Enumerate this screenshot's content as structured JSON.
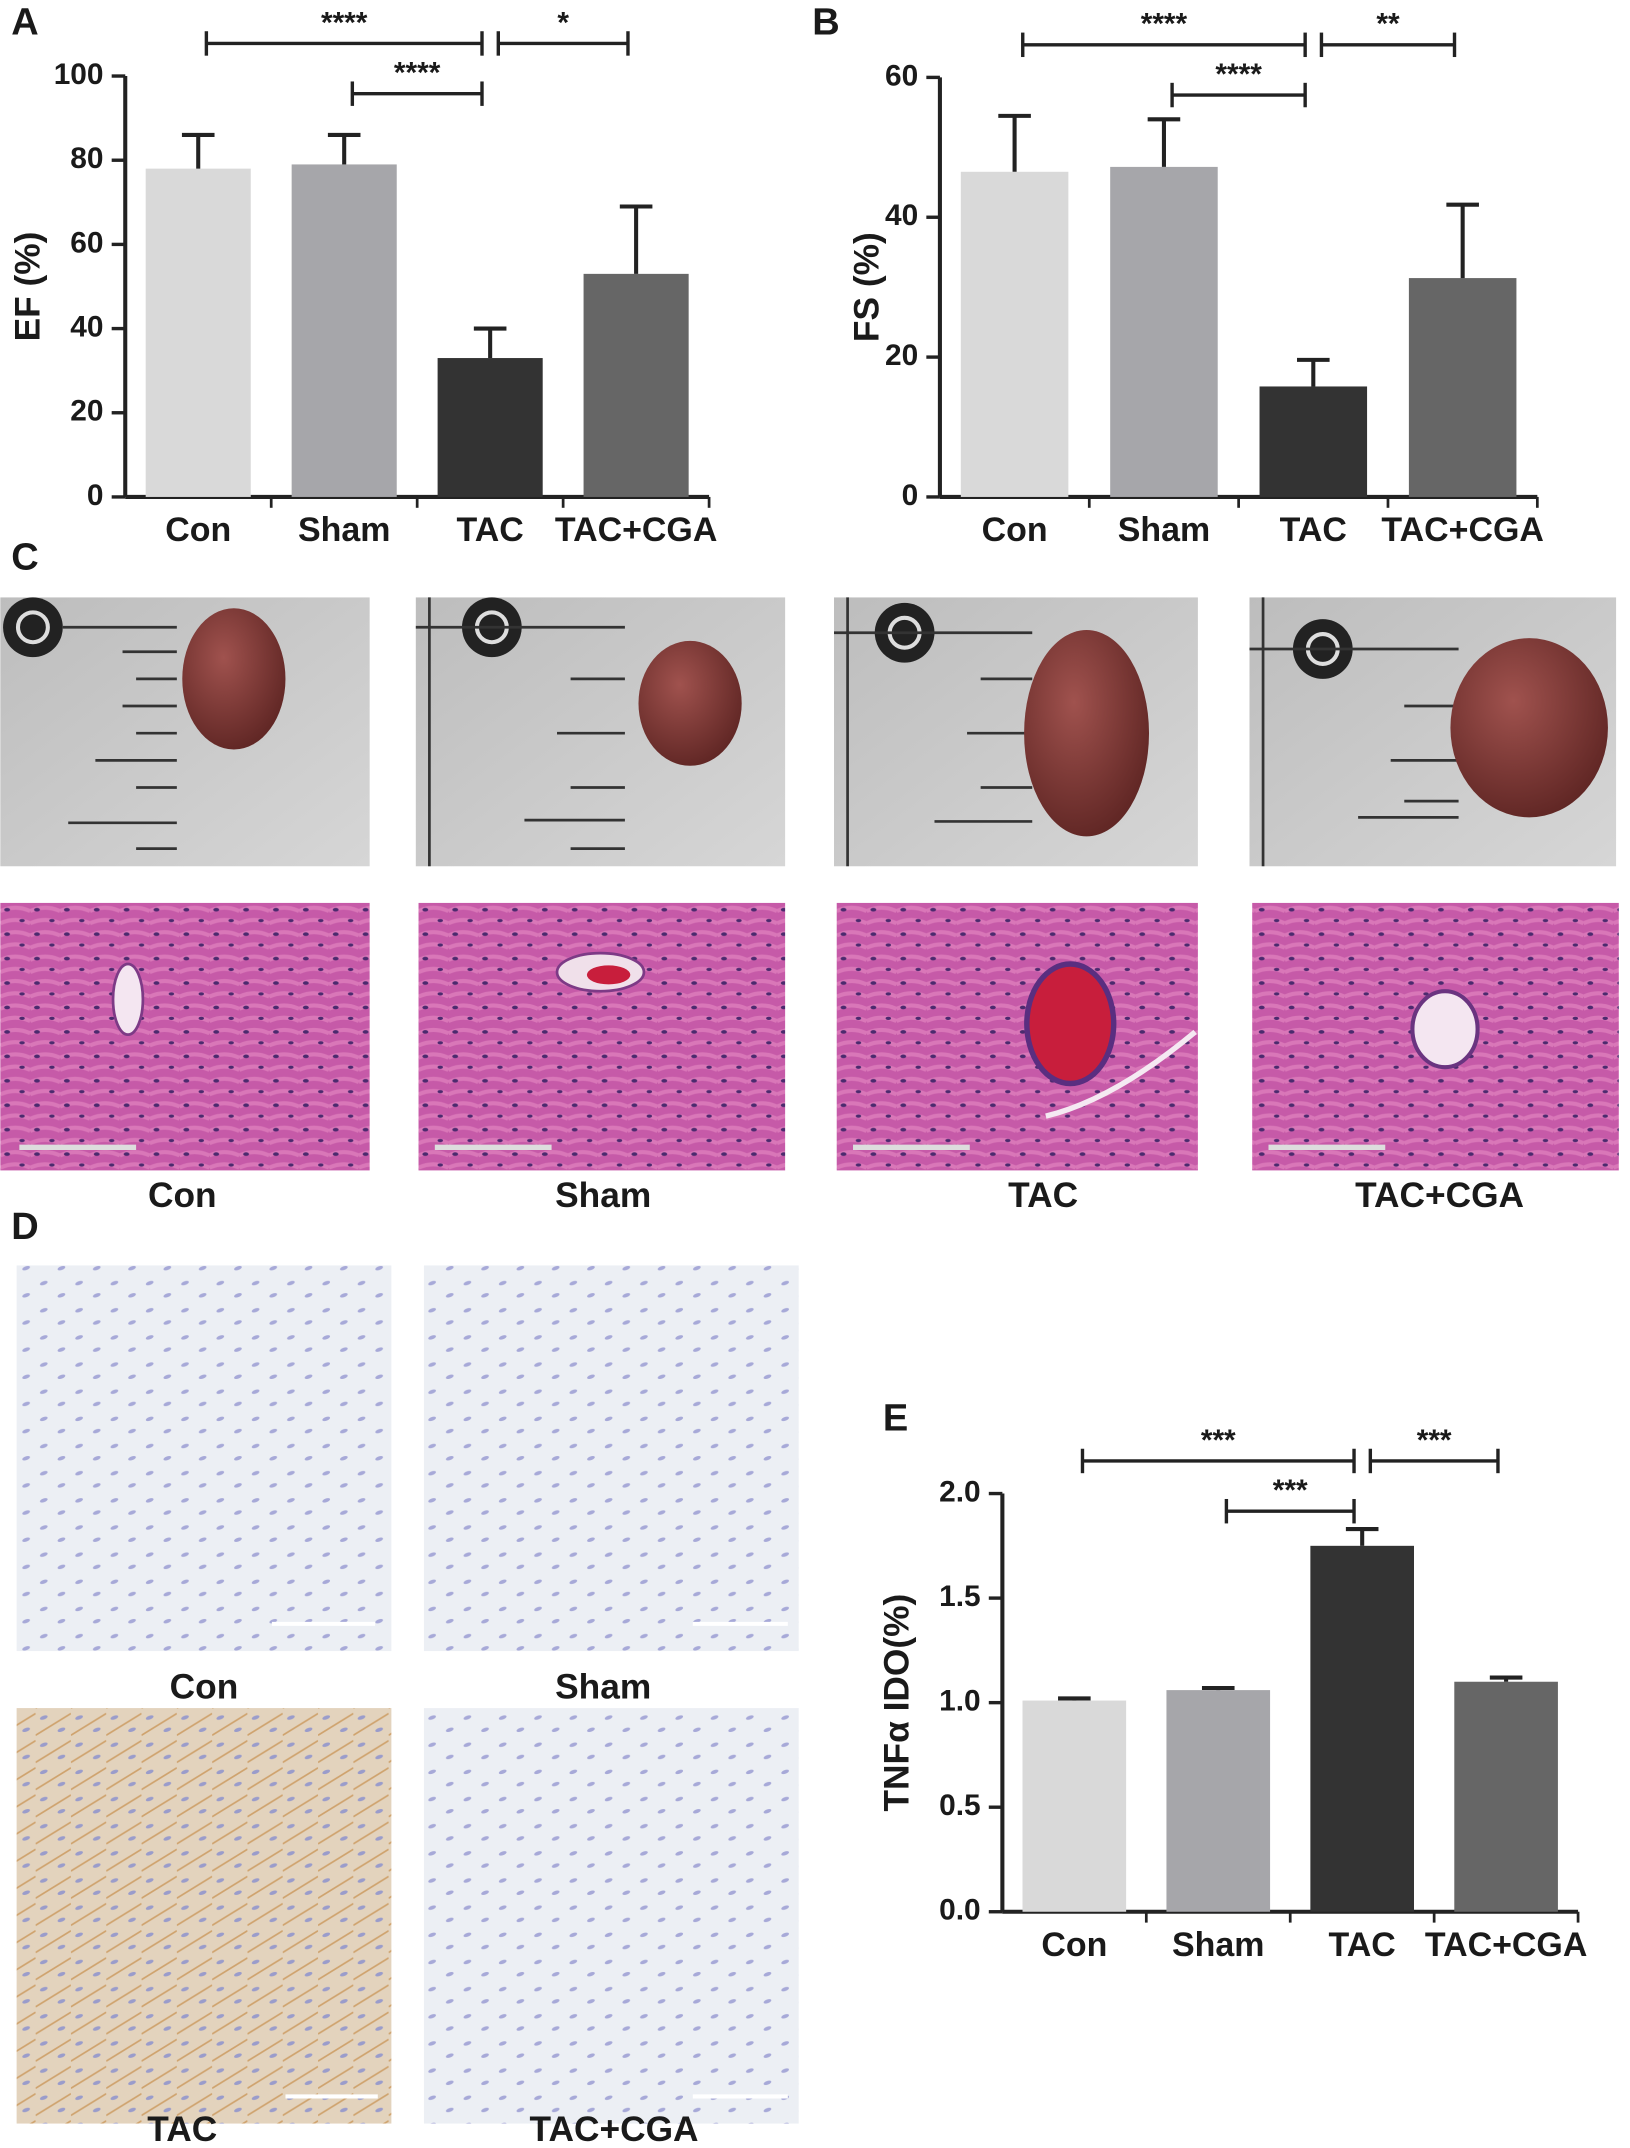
{
  "chart_data": [
    {
      "type": "bar",
      "panel_label": "A",
      "y_label": "EF (%)",
      "categories": [
        "Con",
        "Sham",
        "TAC",
        "TAC+CGA"
      ],
      "values": [
        78,
        79,
        33,
        53
      ],
      "errors": [
        8,
        7,
        7,
        16
      ],
      "colors": [
        "#d9d9d9",
        "#a6a6aa",
        "#333333",
        "#666666"
      ],
      "ylim": [
        0,
        100
      ],
      "yticks": [
        0,
        20,
        40,
        60,
        80,
        100
      ],
      "annotations": [
        {
          "text": "****",
          "between": [
            0,
            2
          ]
        },
        {
          "text": "****",
          "between": [
            1,
            2
          ]
        },
        {
          "text": "*",
          "between": [
            2,
            3
          ]
        }
      ]
    },
    {
      "type": "bar",
      "panel_label": "B",
      "y_label": "FS (%)",
      "categories": [
        "Con",
        "Sham",
        "TAC",
        "TAC+CGA"
      ],
      "values": [
        46.5,
        47.2,
        15.8,
        31.3
      ],
      "errors": [
        8,
        6.8,
        3.8,
        10.5
      ],
      "colors": [
        "#d9d9d9",
        "#a6a6aa",
        "#333333",
        "#666666"
      ],
      "ylim": [
        0,
        60
      ],
      "yticks": [
        0,
        20,
        40,
        60
      ],
      "annotations": [
        {
          "text": "****",
          "between": [
            0,
            2
          ]
        },
        {
          "text": "****",
          "between": [
            1,
            2
          ]
        },
        {
          "text": "**",
          "between": [
            2,
            3
          ]
        }
      ]
    },
    {
      "type": "bar",
      "panel_label": "E",
      "y_label": "TNFα IDO(%)",
      "categories": [
        "Con",
        "Sham",
        "TAC",
        "TAC+CGA"
      ],
      "values": [
        1.01,
        1.06,
        1.75,
        1.1
      ],
      "errors": [
        0.01,
        0.01,
        0.08,
        0.02
      ],
      "colors": [
        "#d9d9d9",
        "#a6a6aa",
        "#333333",
        "#666666"
      ],
      "ylim": [
        0,
        2
      ],
      "yticks": [
        {
          "value": 0,
          "label": "0.0"
        },
        {
          "value": 0.5,
          "label": "0.5"
        },
        {
          "value": 1,
          "label": "1.0"
        },
        {
          "value": 1.5,
          "label": "1.5"
        },
        {
          "value": 2,
          "label": "2.0"
        }
      ],
      "annotations": [
        {
          "text": "***",
          "between": [
            0,
            2
          ]
        },
        {
          "text": "***",
          "between": [
            1,
            2
          ]
        },
        {
          "text": "***",
          "between": [
            2,
            3
          ]
        }
      ]
    }
  ],
  "panel_c": {
    "label": "C",
    "captions": [
      "Con",
      "Sham",
      "TAC",
      "TAC+CGA"
    ]
  },
  "panel_d": {
    "label": "D",
    "captions": [
      "Con",
      "Sham",
      "TAC",
      "TAC+CGA"
    ]
  }
}
